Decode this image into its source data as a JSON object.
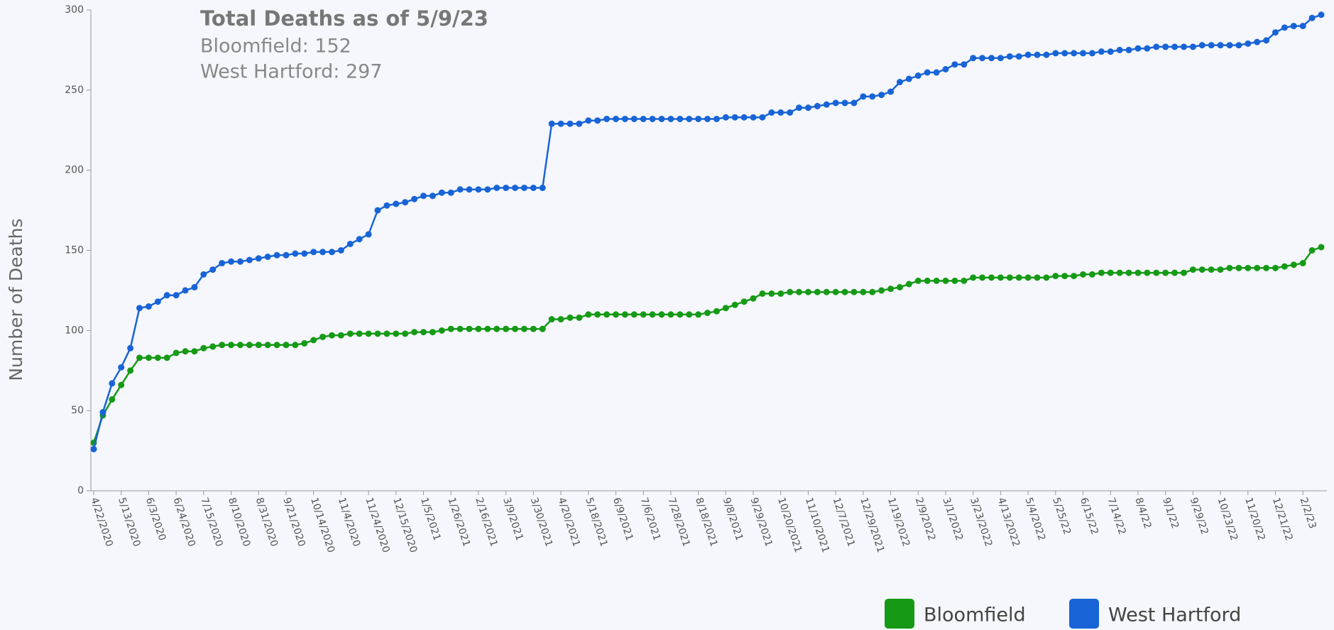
{
  "chart_data": {
    "type": "line",
    "annotation": {
      "title": "Total Deaths as of 5/9/23",
      "lines": [
        "Bloomfield: 152",
        "West Hartford: 297"
      ]
    },
    "y_label": "Number of Deaths",
    "categories": [
      "4/22/2020",
      null,
      null,
      "5/13/2020",
      null,
      null,
      "6/3/2020",
      null,
      null,
      "6/24/2020",
      null,
      null,
      "7/15/2020",
      null,
      null,
      "8/10/2020",
      null,
      null,
      "8/31/2020",
      null,
      null,
      "9/21/2020",
      null,
      null,
      "10/14/2020",
      null,
      null,
      "11/4/2020",
      null,
      null,
      "11/24/2020",
      null,
      null,
      "12/15/2020",
      null,
      null,
      "1/5/2021",
      null,
      null,
      "1/26/2021",
      null,
      null,
      "2/16/2021",
      null,
      null,
      "3/9/2021",
      null,
      null,
      "3/30/2021",
      null,
      null,
      "4/20/2021",
      null,
      null,
      "5/18/2021",
      null,
      null,
      "6/9/2021",
      null,
      null,
      "7/6/2021",
      null,
      null,
      "7/28/2021",
      null,
      null,
      "8/18/2021",
      null,
      null,
      "9/8/2021",
      null,
      null,
      "9/29/2021",
      null,
      null,
      "10/20/2021",
      null,
      null,
      "11/10/2021",
      null,
      null,
      "12/7/2021",
      null,
      null,
      "12/29/2021",
      null,
      null,
      "1/19/2022",
      null,
      null,
      "2/9/2022",
      null,
      null,
      "3/1/2022",
      null,
      null,
      "3/23/2022",
      null,
      null,
      "4/13/2022",
      null,
      null,
      "5/4/2022",
      null,
      null,
      "5/25/22",
      null,
      null,
      "6/15/22",
      null,
      null,
      "7/14/22",
      null,
      null,
      "8/4/22",
      null,
      null,
      "9/1/22",
      null,
      null,
      "9/29/22",
      null,
      null,
      "10/23/22",
      null,
      null,
      "11/20/22",
      null,
      null,
      "12/21/22",
      null,
      null,
      "2/2/23",
      null,
      null
    ],
    "series": [
      {
        "name": "Bloomfield",
        "color": "#169a16",
        "values": [
          30,
          47,
          57,
          66,
          75,
          83,
          83,
          83,
          83,
          86,
          87,
          87,
          89,
          90,
          91,
          91,
          91,
          91,
          91,
          91,
          91,
          91,
          91,
          92,
          94,
          96,
          97,
          97,
          98,
          98,
          98,
          98,
          98,
          98,
          98,
          99,
          99,
          99,
          100,
          101,
          101,
          101,
          101,
          101,
          101,
          101,
          101,
          101,
          101,
          101,
          107,
          107,
          108,
          108,
          110,
          110,
          110,
          110,
          110,
          110,
          110,
          110,
          110,
          110,
          110,
          110,
          110,
          111,
          112,
          114,
          116,
          118,
          120,
          123,
          123,
          123,
          124,
          124,
          124,
          124,
          124,
          124,
          124,
          124,
          124,
          124,
          125,
          126,
          127,
          129,
          131,
          131,
          131,
          131,
          131,
          131,
          133,
          133,
          133,
          133,
          133,
          133,
          133,
          133,
          133,
          134,
          134,
          134,
          135,
          135,
          136,
          136,
          136,
          136,
          136,
          136,
          136,
          136,
          136,
          136,
          138,
          138,
          138,
          138,
          139,
          139,
          139,
          139,
          139,
          139,
          140,
          141,
          142,
          150,
          152
        ]
      },
      {
        "name": "West Hartford",
        "color": "#1864d6",
        "values": [
          26,
          49,
          67,
          77,
          89,
          114,
          115,
          118,
          122,
          122,
          125,
          127,
          135,
          138,
          142,
          143,
          143,
          144,
          145,
          146,
          147,
          147,
          148,
          148,
          149,
          149,
          149,
          150,
          154,
          157,
          160,
          175,
          178,
          179,
          180,
          182,
          184,
          184,
          186,
          186,
          188,
          188,
          188,
          188,
          189,
          189,
          189,
          189,
          189,
          189,
          229,
          229,
          229,
          229,
          231,
          231,
          232,
          232,
          232,
          232,
          232,
          232,
          232,
          232,
          232,
          232,
          232,
          232,
          232,
          233,
          233,
          233,
          233,
          233,
          236,
          236,
          236,
          239,
          239,
          240,
          241,
          242,
          242,
          242,
          246,
          246,
          247,
          249,
          255,
          257,
          259,
          261,
          261,
          263,
          266,
          266,
          270,
          270,
          270,
          270,
          271,
          271,
          272,
          272,
          272,
          273,
          273,
          273,
          273,
          273,
          274,
          274,
          275,
          275,
          276,
          276,
          277,
          277,
          277,
          277,
          277,
          278,
          278,
          278,
          278,
          278,
          279,
          280,
          281,
          286,
          289,
          290,
          290,
          295,
          297
        ]
      }
    ],
    "ylim": [
      0,
      300
    ],
    "yticks": [
      0,
      50,
      100,
      150,
      200,
      250,
      300
    ],
    "grid": false
  }
}
